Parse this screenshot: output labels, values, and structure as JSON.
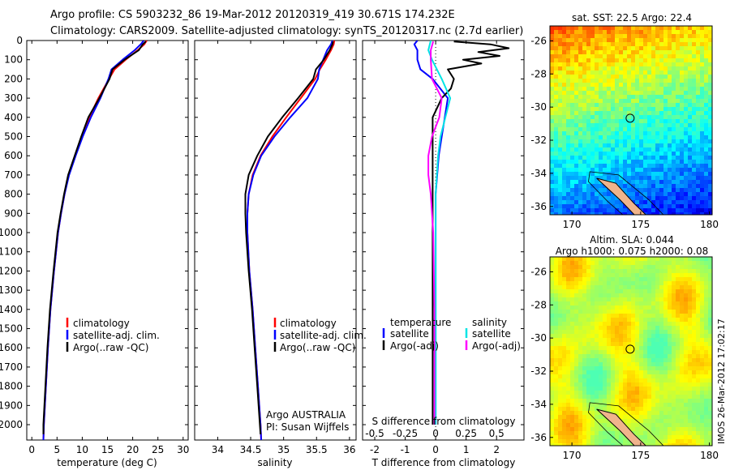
{
  "title_line1": "Argo profile: CS 5903232_86 19-Mar-2012 20120319_419 30.671S 174.232E",
  "title_line2": "Climatology: CARS2009. Satellite-adjusted climatology: synTS_20120317.nc (2.7d earlier)",
  "colors": {
    "climatology": "#ff0000",
    "satellite": "#0000ff",
    "argo": "#000000",
    "sal_satellite": "#00e5e5",
    "sal_argo": "#ff00ff"
  },
  "chart_data": [
    {
      "type": "line",
      "name": "temperature",
      "xlabel": "temperature (deg C)",
      "ylabel": "",
      "xlim": [
        -1,
        31
      ],
      "ylim": [
        2080,
        0
      ],
      "xticks": [
        "0",
        "5",
        "10",
        "15",
        "20",
        "25",
        "30"
      ],
      "yticks": [
        "0",
        "100",
        "200",
        "300",
        "400",
        "500",
        "600",
        "700",
        "800",
        "900",
        "1000",
        "1100",
        "1200",
        "1300",
        "1400",
        "1500",
        "1600",
        "1700",
        "1800",
        "1900",
        "2000"
      ],
      "legend": [
        "climatology",
        "satellite-adj. clim.",
        "Argo(..raw -QC)"
      ],
      "series": [
        {
          "name": "climatology",
          "depth": [
            0,
            20,
            50,
            100,
            150,
            200,
            300,
            400,
            500,
            600,
            700,
            800,
            900,
            1000,
            1200,
            1400,
            1600,
            1800,
            2000,
            2080
          ],
          "values": [
            22.8,
            22.3,
            21.0,
            18.6,
            16.4,
            15.3,
            13.2,
            11.4,
            9.9,
            8.6,
            7.3,
            6.5,
            5.8,
            5.2,
            4.4,
            3.7,
            3.2,
            2.8,
            2.4,
            2.3
          ]
        },
        {
          "name": "satellite-adj. clim.",
          "depth": [
            0,
            20,
            50,
            100,
            150,
            200,
            300,
            400,
            500,
            600,
            700,
            800,
            900,
            1000,
            1200,
            1400,
            1600,
            1800,
            2000,
            2080
          ],
          "values": [
            22.2,
            21.6,
            20.4,
            18.0,
            15.8,
            15.2,
            13.6,
            11.7,
            10.1,
            8.7,
            7.4,
            6.5,
            5.8,
            5.2,
            4.4,
            3.7,
            3.2,
            2.8,
            2.4,
            2.3
          ]
        },
        {
          "name": "Argo(..raw -QC)",
          "depth": [
            5,
            20,
            50,
            100,
            150,
            200,
            300,
            400,
            500,
            600,
            700,
            800,
            900,
            1000,
            1200,
            1400,
            1600,
            1800,
            2000,
            2050
          ],
          "values": [
            22.6,
            22.0,
            21.2,
            18.4,
            16.0,
            15.4,
            13.4,
            11.2,
            9.8,
            8.5,
            7.2,
            6.4,
            5.7,
            5.1,
            4.3,
            3.6,
            3.1,
            2.7,
            2.3,
            2.3
          ]
        }
      ]
    },
    {
      "type": "line",
      "name": "salinity",
      "xlabel": "salinity",
      "xlim": [
        33.65,
        36.1
      ],
      "ylim": [
        2080,
        0
      ],
      "xticks": [
        "34",
        "34.5",
        "35",
        "35.5",
        "36"
      ],
      "legend": [
        "climatology",
        "satellite-adj. clim.",
        "Argo(..raw -QC)"
      ],
      "annotations": [
        "Argo AUSTRALIA",
        "PI: Susan Wijffels"
      ],
      "series": [
        {
          "name": "climatology",
          "depth": [
            0,
            20,
            50,
            100,
            150,
            200,
            300,
            400,
            500,
            600,
            700,
            800,
            900,
            1000,
            1200,
            1400,
            1600,
            1800,
            2000,
            2080
          ],
          "values": [
            35.77,
            35.76,
            35.72,
            35.64,
            35.55,
            35.48,
            35.26,
            35.04,
            34.83,
            34.65,
            34.53,
            34.47,
            34.45,
            34.45,
            34.48,
            34.53,
            34.57,
            34.61,
            34.65,
            34.66
          ]
        },
        {
          "name": "satellite-adj. clim.",
          "depth": [
            0,
            20,
            50,
            100,
            150,
            200,
            300,
            400,
            500,
            600,
            700,
            800,
            900,
            1000,
            1200,
            1400,
            1600,
            1800,
            2000,
            2080
          ],
          "values": [
            35.74,
            35.72,
            35.66,
            35.6,
            35.54,
            35.52,
            35.36,
            35.1,
            34.86,
            34.66,
            34.54,
            34.47,
            34.45,
            34.45,
            34.48,
            34.53,
            34.57,
            34.61,
            34.65,
            34.66
          ]
        },
        {
          "name": "Argo(..raw -QC)",
          "depth": [
            5,
            20,
            50,
            100,
            150,
            200,
            300,
            400,
            500,
            600,
            700,
            800,
            900,
            1000,
            1200,
            1400,
            1600,
            1800,
            2000,
            2050
          ],
          "values": [
            35.75,
            35.74,
            35.7,
            35.61,
            35.49,
            35.45,
            35.22,
            34.98,
            34.76,
            34.6,
            34.47,
            34.42,
            34.42,
            34.43,
            34.47,
            34.52,
            34.56,
            34.6,
            34.64,
            34.65
          ]
        }
      ]
    },
    {
      "type": "line",
      "name": "difference",
      "xlabel": "T difference from climatology",
      "xlabel2": "S difference from climatology",
      "xlim": [
        -2.4,
        2.9
      ],
      "ylim": [
        2080,
        0
      ],
      "xticks": [
        "-2",
        "-1",
        "0",
        "1",
        "2"
      ],
      "xticks2": [
        "-0.5",
        "-0.25",
        "0",
        "0.25",
        "0.5"
      ],
      "legend_left": [
        "temperature",
        "satellite",
        "Argo(-adj)"
      ],
      "legend_right": [
        "salinity",
        "satellite",
        "Argo(-adj)"
      ],
      "series": [
        {
          "name": "T satellite",
          "depth": [
            0,
            20,
            50,
            100,
            150,
            200,
            300,
            400,
            500,
            600,
            700,
            800,
            1000,
            1400,
            2000
          ],
          "values": [
            -0.6,
            -0.7,
            -0.6,
            -0.6,
            -0.5,
            -0.1,
            0.4,
            0.3,
            0.2,
            0.1,
            0.05,
            0,
            0,
            0,
            0
          ]
        },
        {
          "name": "T Argo(-adj)",
          "depth": [
            5,
            20,
            40,
            60,
            80,
            100,
            120,
            150,
            200,
            250,
            300,
            400,
            500,
            600,
            700,
            800,
            1000,
            1400,
            2000
          ],
          "values": [
            0.6,
            1.8,
            2.4,
            1.4,
            2.1,
            0.9,
            1.5,
            0.4,
            0.6,
            0.5,
            0.2,
            -0.1,
            -0.1,
            -0.1,
            -0.1,
            -0.1,
            -0.1,
            -0.1,
            -0.1
          ]
        },
        {
          "name": "S satellite",
          "depth": [
            0,
            50,
            100,
            200,
            300,
            400,
            500,
            600,
            700,
            800,
            1000,
            1400,
            2000
          ],
          "values": [
            -0.04,
            -0.06,
            -0.03,
            0.05,
            0.12,
            0.08,
            0.04,
            0.02,
            0.01,
            0,
            0,
            0,
            0
          ]
        },
        {
          "name": "S Argo(-adj)",
          "depth": [
            5,
            50,
            100,
            200,
            300,
            400,
            500,
            600,
            700,
            800,
            1000,
            1400,
            2000
          ],
          "values": [
            -0.02,
            -0.04,
            -0.04,
            -0.03,
            0.05,
            0.03,
            -0.03,
            -0.06,
            -0.06,
            -0.04,
            -0.02,
            -0.01,
            -0.01
          ]
        }
      ]
    },
    {
      "type": "heatmap",
      "name": "sst-map",
      "title": "sat. SST: 22.5 Argo: 22.4",
      "xticks": [
        "170",
        "175",
        "180"
      ],
      "yticks": [
        "-26",
        "-28",
        "-30",
        "-32",
        "-34",
        "-36"
      ],
      "xlim": [
        168.4,
        180.2
      ],
      "ylim": [
        -36.5,
        -25.1
      ],
      "float_position": {
        "lon": 174.232,
        "lat": -30.671
      }
    },
    {
      "type": "heatmap",
      "name": "sla-map",
      "title_line1": "Altim. SLA: 0.044",
      "title_line2": "Argo h1000: 0.075 h2000: 0.08",
      "xticks": [
        "170",
        "175",
        "180"
      ],
      "yticks": [
        "-26",
        "-28",
        "-30",
        "-32",
        "-34",
        "-36"
      ],
      "xlim": [
        168.4,
        180.2
      ],
      "ylim": [
        -36.5,
        -25.1
      ],
      "float_position": {
        "lon": 174.232,
        "lat": -30.671
      }
    }
  ],
  "footer_stamp": "IMOS 26-Mar-2012 17:02:17"
}
